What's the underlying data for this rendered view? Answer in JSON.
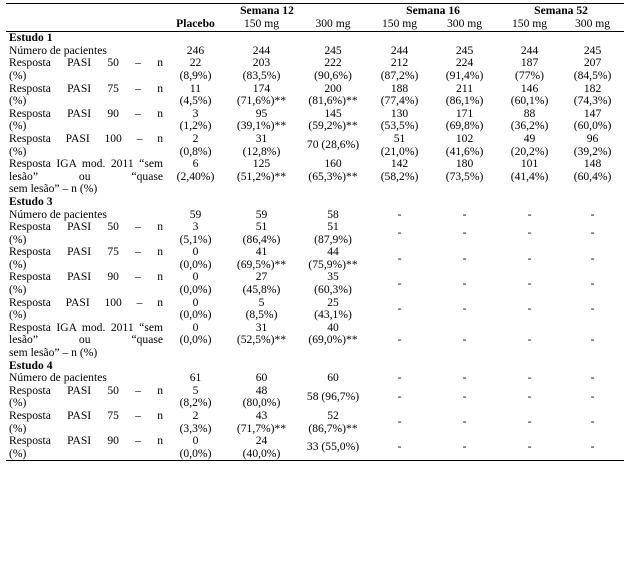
{
  "header": {
    "week12": "Semana 12",
    "week16": "Semana 16",
    "week52": "Semana 52",
    "placebo": "Placebo",
    "dose150": "150 mg",
    "dose300": "300 mg"
  },
  "studies": [
    {
      "title": "Estudo 1",
      "rows": [
        {
          "label": [
            "Número de pacientes"
          ],
          "vals": [
            [
              "246"
            ],
            [
              "244"
            ],
            [
              "245"
            ],
            [
              "244"
            ],
            [
              "245"
            ],
            [
              "244"
            ],
            [
              "245"
            ]
          ]
        },
        {
          "label": [
            "Resposta PASI 50 – n",
            "(%)"
          ],
          "vals": [
            [
              "22",
              "(8,9%)"
            ],
            [
              "203",
              "(83,5%)"
            ],
            [
              "222",
              "(90,6%)"
            ],
            [
              "212",
              "(87,2%)"
            ],
            [
              "224",
              "(91,4%)"
            ],
            [
              "187",
              "(77%)"
            ],
            [
              "207",
              "(84,5%)"
            ]
          ]
        },
        {
          "label": [
            "Resposta PASI 75 – n",
            "(%)"
          ],
          "vals": [
            [
              "11",
              "(4,5%)"
            ],
            [
              "174",
              "(71,6%)**"
            ],
            [
              "200",
              "(81,6%)**"
            ],
            [
              "188",
              "(77,4%)"
            ],
            [
              "211",
              "(86,1%)"
            ],
            [
              "146",
              "(60,1%)"
            ],
            [
              "182",
              "(74,3%)"
            ]
          ]
        },
        {
          "label": [
            "Resposta PASI 90 – n",
            "(%)"
          ],
          "vals": [
            [
              "3",
              "(1,2%)"
            ],
            [
              "95",
              "(39,1%)**"
            ],
            [
              "145",
              "(59,2%)**"
            ],
            [
              "130",
              "(53,5%)"
            ],
            [
              "171",
              "(69,8%)"
            ],
            [
              "88",
              "(36,2%)"
            ],
            [
              "147",
              "(60,0%)"
            ]
          ]
        },
        {
          "label": [
            "Resposta PASI 100 – n",
            "(%)"
          ],
          "vals": [
            [
              "2",
              "(0,8%)"
            ],
            [
              "31",
              "(12,8%)"
            ],
            [
              "70 (28,6%)"
            ],
            [
              "51",
              "(21,0%)"
            ],
            [
              "102",
              "(41,6%)"
            ],
            [
              "49",
              "(20,2%)"
            ],
            [
              "96",
              "(39,2%)"
            ]
          ]
        },
        {
          "label": [
            "Resposta IGA mod. 2011",
            "“sem lesão” ou “quase",
            "sem lesão” – n (%)"
          ],
          "vals": [
            [
              "6",
              "(2,40%)"
            ],
            [
              "125",
              "(51,2%)**"
            ],
            [
              "160",
              "(65,3%)**"
            ],
            [
              "142",
              "(58,2%)"
            ],
            [
              "180",
              "(73,5%)"
            ],
            [
              "101",
              "(41,4%)"
            ],
            [
              "148",
              "(60,4%)"
            ]
          ]
        }
      ]
    },
    {
      "title": "Estudo 3",
      "rows": [
        {
          "label": [
            "Número de pacientes"
          ],
          "vals": [
            [
              "59"
            ],
            [
              "59"
            ],
            [
              "58"
            ],
            [
              "-"
            ],
            [
              "-"
            ],
            [
              "-"
            ],
            [
              "-"
            ]
          ]
        },
        {
          "label": [
            "Resposta PASI 50 – n",
            "(%)"
          ],
          "vals": [
            [
              "3",
              "(5,1%)"
            ],
            [
              "51",
              "(86,4%)"
            ],
            [
              "51",
              "(87,9%)"
            ],
            [
              "-"
            ],
            [
              "-"
            ],
            [
              "-"
            ],
            [
              "-"
            ]
          ]
        },
        {
          "label": [
            "Resposta PASI 75 – n",
            "(%)"
          ],
          "vals": [
            [
              "0",
              "(0,0%)"
            ],
            [
              "41",
              "(69,5%)**"
            ],
            [
              "44",
              "(75,9%)**"
            ],
            [
              "-"
            ],
            [
              "-"
            ],
            [
              "-"
            ],
            [
              "-"
            ]
          ]
        },
        {
          "label": [
            "Resposta PASI 90 – n",
            "(%)"
          ],
          "vals": [
            [
              "0",
              "(0,0%)"
            ],
            [
              "27",
              "(45,8%)"
            ],
            [
              "35",
              "(60,3%)"
            ],
            [
              "-"
            ],
            [
              "-"
            ],
            [
              "-"
            ],
            [
              "-"
            ]
          ]
        },
        {
          "label": [
            "Resposta PASI 100 – n",
            "(%)"
          ],
          "vals": [
            [
              "0",
              "(0,0%)"
            ],
            [
              "5",
              "(8,5%)"
            ],
            [
              "25",
              "(43,1%)"
            ],
            [
              "-"
            ],
            [
              "-"
            ],
            [
              "-"
            ],
            [
              "-"
            ]
          ]
        },
        {
          "label": [
            "Resposta IGA mod. 2011",
            "“sem lesão” ou “quase",
            "sem lesão” – n (%)"
          ],
          "vals": [
            [
              "0",
              "(0,0%)"
            ],
            [
              "31",
              "(52,5%)**"
            ],
            [
              "40",
              "(69,0%)**"
            ],
            [
              "-"
            ],
            [
              "-"
            ],
            [
              "-"
            ],
            [
              "-"
            ]
          ]
        }
      ]
    },
    {
      "title": "Estudo 4",
      "rows": [
        {
          "label": [
            "Número de pacientes"
          ],
          "vals": [
            [
              "61"
            ],
            [
              "60"
            ],
            [
              "60"
            ],
            [
              "-"
            ],
            [
              "-"
            ],
            [
              "-"
            ],
            [
              "-"
            ]
          ]
        },
        {
          "label": [
            "Resposta PASI 50 – n",
            "(%)"
          ],
          "vals": [
            [
              "5",
              "(8,2%)"
            ],
            [
              "48",
              "(80,0%)"
            ],
            [
              "58 (96,7%)"
            ],
            [
              "-"
            ],
            [
              "-"
            ],
            [
              "-"
            ],
            [
              "-"
            ]
          ]
        },
        {
          "label": [
            "Resposta PASI 75 – n",
            "(%)"
          ],
          "vals": [
            [
              "2",
              "(3,3%)"
            ],
            [
              "43",
              "(71,7%)**"
            ],
            [
              "52",
              "(86,7%)**"
            ],
            [
              "-"
            ],
            [
              "-"
            ],
            [
              "-"
            ],
            [
              "-"
            ]
          ]
        },
        {
          "label": [
            "Resposta PASI 90 – n",
            "(%)"
          ],
          "vals": [
            [
              "0",
              "(0,0%)"
            ],
            [
              "24",
              "(40,0%)"
            ],
            [
              "33 (55,0%)"
            ],
            [
              "-"
            ],
            [
              "-"
            ],
            [
              "-"
            ],
            [
              "-"
            ]
          ]
        }
      ]
    }
  ]
}
